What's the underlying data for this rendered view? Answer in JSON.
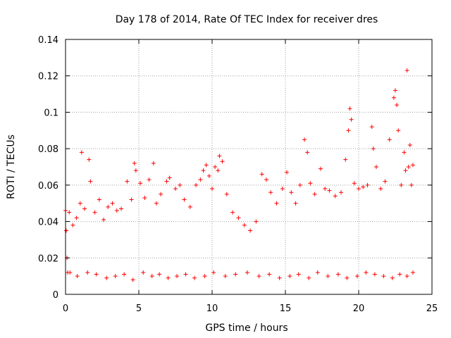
{
  "chart_data": {
    "type": "scatter",
    "title": "Day 178 of 2014, Rate Of TEC Index for receiver dres",
    "xlabel": "GPS time / hours",
    "ylabel": "ROTI / TECUs",
    "xlim": [
      0,
      25
    ],
    "ylim": [
      0,
      0.14
    ],
    "xticks": [
      0,
      5,
      10,
      15,
      20,
      25
    ],
    "xtick_labels": [
      "0",
      "5",
      "10",
      "15",
      "20",
      "25"
    ],
    "yticks": [
      0,
      0.02,
      0.04,
      0.06,
      0.08,
      0.1,
      0.12,
      0.14
    ],
    "ytick_labels": [
      "0",
      "0.02",
      "0.04",
      "0.06",
      "0.08",
      "0.1",
      "0.12",
      "0.14"
    ],
    "grid": true,
    "marker": "+",
    "color": "#ff0000",
    "series": [
      {
        "name": "ROTI",
        "x": [
          0.0,
          0.05,
          0.1,
          0.15,
          0.25,
          0.5,
          0.75,
          1.0,
          1.1,
          1.3,
          1.6,
          1.7,
          2.0,
          2.3,
          2.6,
          2.9,
          3.2,
          3.5,
          3.8,
          4.2,
          4.5,
          4.7,
          4.8,
          5.1,
          5.4,
          5.7,
          6.0,
          6.2,
          6.5,
          6.9,
          7.1,
          7.5,
          7.8,
          8.1,
          8.5,
          8.9,
          9.2,
          9.4,
          9.6,
          9.8,
          10.0,
          10.2,
          10.4,
          10.5,
          10.7,
          11.0,
          11.4,
          11.8,
          12.2,
          12.6,
          13.0,
          13.4,
          13.7,
          14.0,
          14.4,
          14.8,
          15.1,
          15.4,
          15.7,
          16.0,
          16.3,
          16.5,
          16.7,
          17.0,
          17.4,
          17.7,
          18.0,
          18.4,
          18.8,
          19.1,
          19.3,
          19.4,
          19.5,
          19.7,
          20.0,
          20.3,
          20.6,
          20.9,
          21.0,
          21.2,
          21.5,
          21.8,
          22.1,
          22.4,
          22.5,
          22.6,
          22.7,
          22.9,
          23.1,
          23.2,
          23.3,
          23.4,
          23.5,
          23.6,
          23.7,
          0.3,
          0.8,
          1.5,
          2.1,
          2.8,
          3.4,
          4.0,
          4.6,
          5.3,
          5.9,
          6.4,
          7.0,
          7.6,
          8.2,
          8.8,
          9.5,
          10.1,
          10.9,
          11.6,
          12.4,
          13.2,
          13.9,
          14.6,
          15.3,
          15.9,
          16.6,
          17.2,
          17.9,
          18.6,
          19.2,
          19.9,
          20.5,
          21.1,
          21.7,
          22.3,
          22.8,
          23.3,
          23.7
        ],
        "y": [
          0.046,
          0.035,
          0.02,
          0.012,
          0.045,
          0.038,
          0.042,
          0.05,
          0.078,
          0.047,
          0.074,
          0.062,
          0.045,
          0.052,
          0.041,
          0.048,
          0.05,
          0.046,
          0.047,
          0.062,
          0.052,
          0.072,
          0.068,
          0.061,
          0.053,
          0.063,
          0.072,
          0.05,
          0.055,
          0.062,
          0.064,
          0.058,
          0.06,
          0.052,
          0.048,
          0.06,
          0.063,
          0.068,
          0.071,
          0.065,
          0.058,
          0.07,
          0.068,
          0.076,
          0.073,
          0.055,
          0.045,
          0.042,
          0.038,
          0.035,
          0.04,
          0.066,
          0.063,
          0.056,
          0.05,
          0.058,
          0.067,
          0.056,
          0.05,
          0.06,
          0.085,
          0.078,
          0.061,
          0.055,
          0.069,
          0.058,
          0.057,
          0.054,
          0.056,
          0.074,
          0.09,
          0.102,
          0.096,
          0.061,
          0.058,
          0.059,
          0.06,
          0.092,
          0.08,
          0.07,
          0.058,
          0.062,
          0.085,
          0.108,
          0.112,
          0.104,
          0.09,
          0.06,
          0.078,
          0.068,
          0.123,
          0.07,
          0.082,
          0.06,
          0.071,
          0.012,
          0.01,
          0.012,
          0.011,
          0.009,
          0.01,
          0.011,
          0.008,
          0.012,
          0.01,
          0.011,
          0.009,
          0.01,
          0.011,
          0.009,
          0.01,
          0.012,
          0.01,
          0.011,
          0.012,
          0.01,
          0.011,
          0.009,
          0.01,
          0.011,
          0.009,
          0.012,
          0.01,
          0.011,
          0.009,
          0.01,
          0.012,
          0.011,
          0.01,
          0.009,
          0.011,
          0.01,
          0.012
        ]
      }
    ]
  }
}
